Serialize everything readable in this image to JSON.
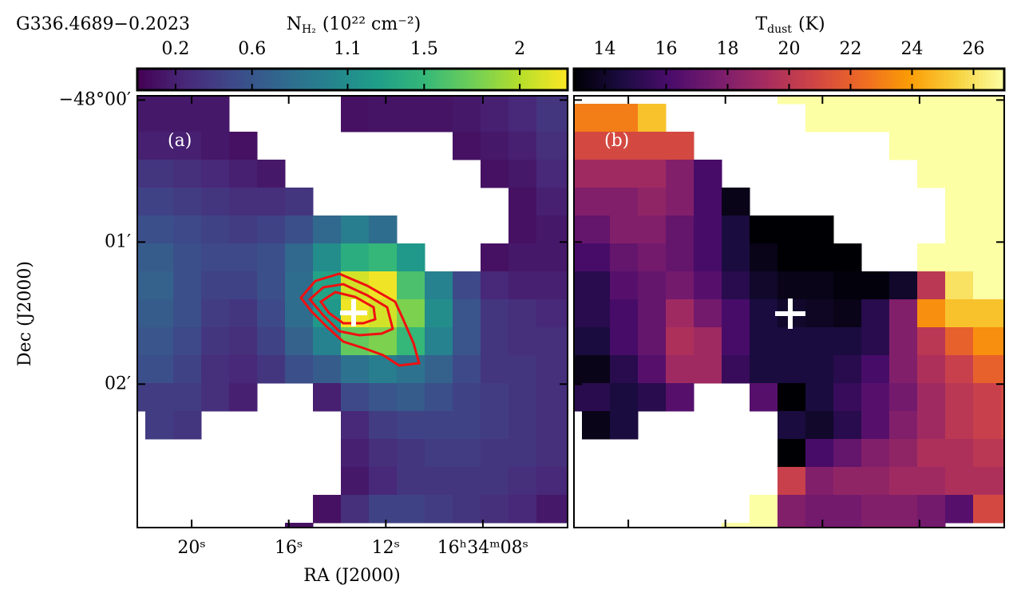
{
  "chart_data": [
    {
      "type": "heatmap",
      "title": "G336.4689−0.2023",
      "colorbar_label": {
        "symbol": "N",
        "sub": "H₂",
        "unit": "(10²² cm⁻²)"
      },
      "colormap": "viridis",
      "clim": [
        0,
        2.25
      ],
      "cticks": [
        0.2,
        0.6,
        1.1,
        1.5,
        2.0
      ],
      "panel_label": "(a)",
      "xlabel": "RA (J2000)",
      "ylabel": "Dec (J2000)",
      "xlim": [
        22.24,
        4.51
      ],
      "xticks": [
        {
          "value": 20,
          "label": "20ˢ"
        },
        {
          "value": 16,
          "label": "16ˢ"
        },
        {
          "value": 12,
          "label": "12ˢ"
        },
        {
          "value": 8,
          "label": "16ʰ34ᵐ08ˢ"
        }
      ],
      "ylim": [
        -0.03,
        3.01
      ],
      "yticks": [
        {
          "value": 0,
          "label": "−48°00′"
        },
        {
          "value": 1,
          "label": "01′"
        },
        {
          "value": 2,
          "label": "02′"
        }
      ],
      "z": [
        [
          0.15,
          0.15,
          0.15,
          0.15,
          null,
          null,
          null,
          null,
          0.1,
          0.12,
          0.12,
          0.12,
          0.15,
          0.2,
          0.25,
          0.35,
          0.35
        ],
        [
          0.15,
          0.15,
          0.15,
          0.15,
          null,
          null,
          null,
          null,
          0.1,
          0.12,
          0.12,
          0.12,
          0.15,
          0.2,
          0.25,
          0.35,
          0.35
        ],
        [
          0.2,
          0.2,
          0.2,
          0.15,
          0.1,
          null,
          null,
          null,
          null,
          null,
          null,
          null,
          0.1,
          0.15,
          0.2,
          0.3,
          0.3
        ],
        [
          0.35,
          0.35,
          0.3,
          0.25,
          0.2,
          0.15,
          null,
          null,
          null,
          null,
          null,
          null,
          null,
          0.1,
          0.15,
          0.25,
          0.25
        ],
        [
          0.45,
          0.45,
          0.4,
          0.35,
          0.3,
          0.3,
          0.35,
          null,
          null,
          null,
          null,
          null,
          null,
          null,
          0.1,
          0.2,
          0.2
        ],
        [
          0.55,
          0.55,
          0.5,
          0.45,
          0.4,
          0.45,
          0.55,
          0.75,
          0.95,
          0.8,
          null,
          null,
          null,
          null,
          0.1,
          0.15,
          0.15
        ],
        [
          0.65,
          0.65,
          0.55,
          0.5,
          0.5,
          0.55,
          0.75,
          1.1,
          1.4,
          1.5,
          1.2,
          null,
          null,
          0.1,
          0.15,
          0.15,
          0.15
        ],
        [
          0.7,
          0.7,
          0.55,
          0.45,
          0.45,
          0.55,
          0.8,
          1.3,
          2.1,
          2.2,
          1.6,
          1.0,
          0.5,
          0.25,
          0.2,
          0.2,
          0.2
        ],
        [
          0.65,
          0.65,
          0.55,
          0.4,
          0.35,
          0.5,
          0.8,
          1.2,
          2.2,
          2.1,
          1.8,
          1.1,
          0.6,
          0.35,
          0.3,
          0.25,
          0.25
        ],
        [
          0.6,
          0.6,
          0.5,
          0.35,
          0.3,
          0.45,
          0.7,
          1.0,
          1.7,
          1.8,
          1.5,
          1.0,
          0.6,
          0.35,
          0.3,
          0.3,
          0.3
        ],
        [
          0.55,
          0.55,
          0.45,
          0.3,
          0.25,
          0.35,
          0.55,
          0.65,
          0.85,
          0.95,
          0.85,
          0.7,
          0.5,
          0.35,
          0.35,
          0.3,
          0.3
        ],
        [
          0.4,
          0.4,
          0.4,
          0.3,
          0.2,
          null,
          null,
          0.2,
          0.5,
          0.6,
          0.65,
          0.55,
          0.45,
          0.4,
          0.35,
          0.3,
          0.3
        ],
        [
          null,
          0.4,
          0.35,
          null,
          null,
          null,
          null,
          null,
          0.25,
          0.4,
          0.45,
          0.45,
          0.45,
          0.4,
          0.35,
          0.3,
          0.3
        ],
        [
          null,
          null,
          null,
          null,
          null,
          null,
          null,
          null,
          0.2,
          0.3,
          0.35,
          0.4,
          0.4,
          0.35,
          0.35,
          0.3,
          0.3
        ],
        [
          null,
          null,
          null,
          null,
          null,
          null,
          null,
          null,
          0.15,
          0.25,
          0.35,
          0.35,
          0.35,
          0.35,
          0.3,
          0.25,
          0.25
        ],
        [
          null,
          null,
          null,
          null,
          null,
          null,
          null,
          0.1,
          0.3,
          0.45,
          0.45,
          0.4,
          0.35,
          0.3,
          0.25,
          0.15,
          0.15
        ],
        [
          null,
          null,
          null,
          null,
          null,
          null,
          0.1,
          null,
          null,
          null,
          null,
          null,
          null,
          null,
          null,
          null,
          null
        ]
      ]
    },
    {
      "type": "heatmap",
      "colorbar_label": {
        "symbol": "T",
        "sub": "dust",
        "unit": "(K)"
      },
      "colormap": "inferno",
      "clim": [
        13,
        27
      ],
      "cticks": [
        14,
        16,
        18,
        20,
        22,
        24,
        26
      ],
      "panel_label": "(b)",
      "z": [
        [
          null,
          null,
          null,
          null,
          null,
          null,
          null,
          null,
          27,
          27,
          27,
          27,
          27,
          27,
          27,
          27,
          27
        ],
        [
          23,
          23,
          23,
          25,
          null,
          null,
          null,
          null,
          null,
          27,
          27,
          27,
          27,
          27,
          27,
          27,
          27
        ],
        [
          21,
          21,
          21,
          21,
          21,
          null,
          null,
          null,
          null,
          null,
          null,
          null,
          27,
          27,
          27,
          27,
          27
        ],
        [
          19,
          19,
          19,
          19,
          18,
          16,
          null,
          null,
          null,
          null,
          null,
          null,
          null,
          27,
          27,
          27,
          27
        ],
        [
          18,
          18,
          18,
          18.5,
          18,
          16,
          13.5,
          null,
          null,
          null,
          null,
          null,
          null,
          null,
          27,
          27,
          27
        ],
        [
          17,
          17,
          18,
          18,
          17,
          16,
          14.5,
          13,
          13,
          13,
          null,
          null,
          null,
          null,
          27,
          27,
          27
        ],
        [
          16,
          16,
          17,
          17.5,
          17,
          16,
          14.5,
          13.5,
          13,
          13,
          13,
          null,
          null,
          27,
          27,
          27,
          27
        ],
        [
          15,
          15,
          16.5,
          17,
          17.5,
          16.5,
          15,
          14,
          13.5,
          13.5,
          13.2,
          13.2,
          14,
          20,
          26,
          27,
          27
        ],
        [
          15,
          15,
          16,
          17,
          19,
          17.5,
          16,
          14.5,
          14,
          13.8,
          13.5,
          15,
          18,
          23.5,
          25,
          25,
          25
        ],
        [
          14.5,
          14.5,
          16,
          17,
          19.5,
          19,
          16,
          14.5,
          14.5,
          14.5,
          14.5,
          15,
          18,
          20,
          22,
          23.5,
          23.5
        ],
        [
          13.5,
          13.5,
          15,
          16.5,
          19,
          19,
          15.5,
          14.5,
          14.5,
          14.5,
          15,
          16,
          18,
          19.5,
          20.5,
          22,
          22
        ],
        [
          15,
          15,
          14.5,
          15,
          16.5,
          null,
          null,
          16.5,
          13,
          14.5,
          15.5,
          16.5,
          17.5,
          19,
          20,
          20.5,
          21
        ],
        [
          null,
          13.5,
          14.5,
          null,
          null,
          null,
          null,
          null,
          14.5,
          14,
          15,
          16.5,
          18,
          19,
          20,
          20.5,
          21
        ],
        [
          null,
          null,
          null,
          null,
          null,
          null,
          null,
          null,
          13,
          16,
          17,
          18,
          18.5,
          19.5,
          19.5,
          20,
          20
        ],
        [
          null,
          null,
          null,
          null,
          null,
          null,
          null,
          null,
          20.5,
          18,
          18.5,
          18.5,
          19,
          19,
          19.5,
          19.5,
          19.5
        ],
        [
          null,
          null,
          null,
          null,
          null,
          null,
          null,
          27,
          18,
          17.5,
          17.5,
          18,
          18,
          17.5,
          16.5,
          21,
          21
        ],
        [
          null,
          null,
          null,
          null,
          null,
          null,
          27,
          27,
          18,
          17.5,
          17.5,
          18,
          18,
          17.5,
          null,
          null,
          null
        ]
      ]
    }
  ]
}
